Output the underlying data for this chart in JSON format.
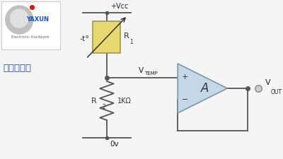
{
  "bg_color": "#f5f5f5",
  "wire_color": "#555555",
  "ntc_fill": "#e8d870",
  "ntc_edge": "#999955",
  "opamp_fill": "#c5d8e8",
  "opamp_edge": "#7799aa",
  "dot_color": "#555555",
  "vcc_label": "+Vcc",
  "gnd_label": "0v",
  "vtemp_v": "V",
  "vtemp_sub": "TEMP",
  "r1_v": "R",
  "r1_sub": "1",
  "r2_v": "R",
  "r2_sub": "2",
  "r2_val": "1KΩ",
  "vout_v": "V",
  "vout_sub": "OUT",
  "ntc_label": "-t°",
  "amp_label": "A",
  "title_cn": "负温度系数",
  "logo_text": "YAXUN",
  "logo_sub": "Electronic Hardware",
  "lw": 1.3
}
